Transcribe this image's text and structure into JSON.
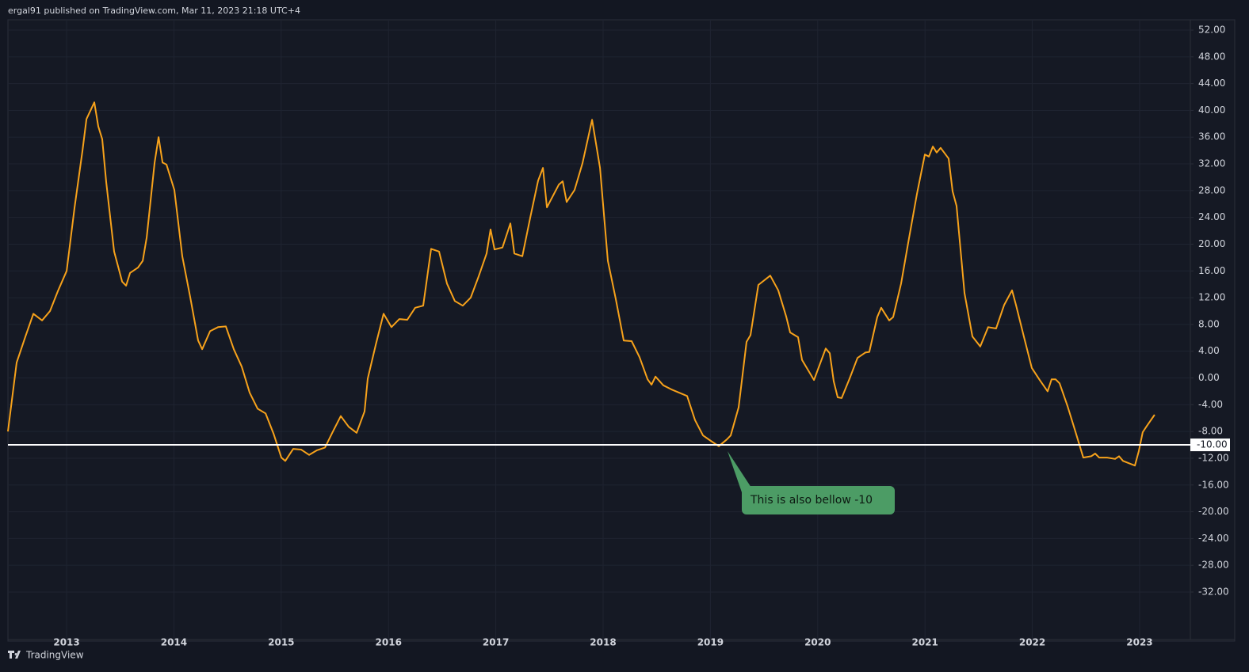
{
  "header": "ergal91 published on TradingView.com, Mar 11, 2023 21:18 UTC+4",
  "footer": "TradingView",
  "chart_data": {
    "type": "line",
    "color": "#f7a21b",
    "grid": true,
    "x": [
      2012.453,
      2012.534,
      2012.616,
      2012.69,
      2012.771,
      2012.845,
      2012.919,
      2013.0,
      2013.074,
      2013.148,
      2013.185,
      2013.258,
      2013.295,
      2013.332,
      2013.369,
      2013.443,
      2013.517,
      2013.554,
      2013.591,
      2013.665,
      2013.709,
      2013.746,
      2013.82,
      2013.857,
      2013.894,
      2013.931,
      2014.004,
      2014.078,
      2014.152,
      2014.226,
      2014.263,
      2014.337,
      2014.411,
      2014.484,
      2014.558,
      2014.632,
      2014.706,
      2014.78,
      2014.854,
      2014.928,
      2015.001,
      2015.038,
      2015.112,
      2015.186,
      2015.26,
      2015.334,
      2015.408,
      2015.482,
      2015.555,
      2015.629,
      2015.703,
      2015.777,
      2015.806,
      2015.88,
      2015.954,
      2016.027,
      2016.101,
      2016.175,
      2016.249,
      2016.323,
      2016.397,
      2016.471,
      2016.545,
      2016.618,
      2016.692,
      2016.766,
      2016.84,
      2016.914,
      2016.951,
      2016.988,
      2017.062,
      2017.136,
      2017.173,
      2017.247,
      2017.321,
      2017.394,
      2017.439,
      2017.476,
      2017.587,
      2017.623,
      2017.66,
      2017.734,
      2017.808,
      2017.897,
      2017.971,
      2018.044,
      2018.118,
      2018.192,
      2018.266,
      2018.34,
      2018.414,
      2018.451,
      2018.488,
      2018.561,
      2018.635,
      2018.783,
      2018.857,
      2018.931,
      2019.004,
      2019.078,
      2019.152,
      2019.189,
      2019.263,
      2019.337,
      2019.374,
      2019.447,
      2019.558,
      2019.632,
      2019.706,
      2019.743,
      2019.817,
      2019.854,
      2019.965,
      2020.075,
      2020.112,
      2020.149,
      2020.186,
      2020.223,
      2020.297,
      2020.371,
      2020.444,
      2020.481,
      2020.555,
      2020.592,
      2020.666,
      2020.703,
      2020.777,
      2020.851,
      2020.925,
      2020.999,
      2021.036,
      2021.073,
      2021.109,
      2021.146,
      2021.22,
      2021.257,
      2021.294,
      2021.368,
      2021.442,
      2021.515,
      2021.589,
      2021.663,
      2021.737,
      2021.811,
      2021.848,
      2021.921,
      2021.995,
      2022.069,
      2022.143,
      2022.18,
      2022.217,
      2022.254,
      2022.328,
      2022.401,
      2022.475,
      2022.549,
      2022.586,
      2022.623,
      2022.697,
      2022.771,
      2022.808,
      2022.845,
      2022.956,
      2022.993,
      2023.029,
      2023.066,
      2023.14
    ],
    "values": [
      -8.0,
      2.3,
      6.2,
      9.6,
      8.6,
      10.0,
      13.0,
      16.0,
      25.5,
      34.0,
      38.7,
      41.2,
      37.6,
      35.7,
      29.3,
      18.9,
      14.4,
      13.8,
      15.7,
      16.5,
      17.5,
      21.0,
      32.2,
      36.0,
      32.2,
      31.9,
      28.1,
      18.2,
      12.1,
      5.6,
      4.3,
      7.0,
      7.6,
      7.7,
      4.3,
      1.7,
      -2.2,
      -4.6,
      -5.3,
      -8.3,
      -11.9,
      -12.4,
      -10.6,
      -10.7,
      -11.5,
      -10.8,
      -10.4,
      -8.0,
      -5.7,
      -7.3,
      -8.2,
      -5.0,
      -0.1,
      4.9,
      9.6,
      7.6,
      8.8,
      8.7,
      10.5,
      10.8,
      19.3,
      18.9,
      14.1,
      11.5,
      10.8,
      12.0,
      15.2,
      18.6,
      22.2,
      19.2,
      19.5,
      23.1,
      18.6,
      18.2,
      24.0,
      29.5,
      31.4,
      25.5,
      28.9,
      29.4,
      26.3,
      28.1,
      32.1,
      38.6,
      31.4,
      17.5,
      11.8,
      5.6,
      5.5,
      3.1,
      -0.2,
      -1.0,
      0.2,
      -1.1,
      -1.7,
      -2.7,
      -6.3,
      -8.6,
      -9.4,
      -10.2,
      -9.2,
      -8.6,
      -4.4,
      5.4,
      6.4,
      13.9,
      15.3,
      13.1,
      9.2,
      6.8,
      6.1,
      2.7,
      -0.3,
      4.4,
      3.7,
      -0.5,
      -2.9,
      -3.0,
      -0.1,
      3.0,
      3.8,
      3.9,
      9.1,
      10.5,
      8.6,
      9.1,
      14.1,
      20.9,
      27.5,
      33.4,
      33.1,
      34.6,
      33.7,
      34.4,
      32.8,
      27.9,
      25.7,
      12.7,
      6.2,
      4.7,
      7.6,
      7.4,
      10.9,
      13.1,
      10.9,
      6.2,
      1.5,
      -0.3,
      -2.0,
      -0.2,
      -0.2,
      -0.8,
      -4.2,
      -8.0,
      -11.9,
      -11.7,
      -11.3,
      -11.9,
      -11.9,
      -12.1,
      -11.7,
      -12.4,
      -13.1,
      -10.9,
      -8.1,
      -7.2,
      -5.5
    ],
    "xlim": [
      2012.453,
      2023.473
    ],
    "xticks": [
      2013,
      2014,
      2015,
      2016,
      2017,
      2018,
      2019,
      2020,
      2021,
      2022,
      2023
    ],
    "ylim": [
      -39.1,
      53.54
    ],
    "yticks": [
      {
        "value": 52,
        "label": "52.00"
      },
      {
        "value": 48,
        "label": "48.00"
      },
      {
        "value": 44,
        "label": "44.00"
      },
      {
        "value": 40,
        "label": "40.00"
      },
      {
        "value": 36,
        "label": "36.00"
      },
      {
        "value": 32,
        "label": "32.00"
      },
      {
        "value": 28,
        "label": "28.00"
      },
      {
        "value": 24,
        "label": "24.00"
      },
      {
        "value": 20,
        "label": "20.00"
      },
      {
        "value": 16,
        "label": "16.00"
      },
      {
        "value": 12,
        "label": "12.00"
      },
      {
        "value": 8,
        "label": "8.00"
      },
      {
        "value": 4,
        "label": "4.00"
      },
      {
        "value": 0,
        "label": "0.00"
      },
      {
        "value": -4,
        "label": "-4.00"
      },
      {
        "value": -8,
        "label": "-8.00"
      },
      {
        "value": -12,
        "label": "-12.00"
      },
      {
        "value": -16,
        "label": "-16.00"
      },
      {
        "value": -20,
        "label": "-20.00"
      },
      {
        "value": -24,
        "label": "-24.00"
      },
      {
        "value": -28,
        "label": "-28.00"
      },
      {
        "value": -32,
        "label": "-32.00"
      }
    ],
    "hline": {
      "value": -10,
      "label": "-10.00",
      "color": "#ffffff"
    },
    "annotation": "This is also bellow -10"
  }
}
